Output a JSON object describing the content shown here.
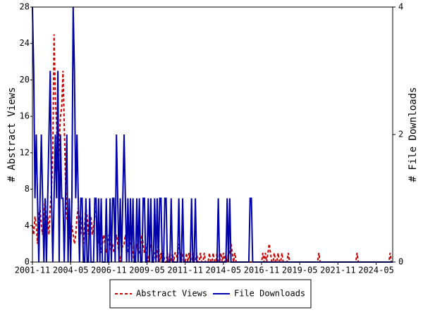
{
  "chart_data": {
    "type": "line",
    "x": [
      "2001-11",
      "2001-12",
      "2002-01",
      "2002-02",
      "2002-03",
      "2002-04",
      "2002-05",
      "2002-06",
      "2002-07",
      "2002-08",
      "2002-09",
      "2002-10",
      "2002-11",
      "2002-12",
      "2003-01",
      "2003-02",
      "2003-03",
      "2003-04",
      "2003-05",
      "2003-06",
      "2003-07",
      "2003-08",
      "2003-09",
      "2003-10",
      "2003-11",
      "2003-12",
      "2004-01",
      "2004-02",
      "2004-03",
      "2004-04",
      "2004-05",
      "2004-06",
      "2004-07",
      "2004-08",
      "2004-09",
      "2004-10",
      "2004-11",
      "2004-12",
      "2005-01",
      "2005-02",
      "2005-03",
      "2005-04",
      "2005-05",
      "2005-06",
      "2005-07",
      "2005-08",
      "2005-09",
      "2005-10",
      "2005-11",
      "2005-12",
      "2006-01",
      "2006-02",
      "2006-03",
      "2006-04",
      "2006-05",
      "2006-06",
      "2006-07",
      "2006-08",
      "2006-09",
      "2006-10",
      "2006-11",
      "2006-12",
      "2007-01",
      "2007-02",
      "2007-03",
      "2007-04",
      "2007-05",
      "2007-06",
      "2007-07",
      "2007-08",
      "2007-09",
      "2007-10",
      "2007-11",
      "2007-12",
      "2008-01",
      "2008-02",
      "2008-03",
      "2008-04",
      "2008-05",
      "2008-06",
      "2008-07",
      "2008-08",
      "2008-09",
      "2008-10",
      "2008-11",
      "2008-12",
      "2009-01",
      "2009-02",
      "2009-03",
      "2009-04",
      "2009-05",
      "2009-06",
      "2009-07",
      "2009-08",
      "2009-09",
      "2009-10",
      "2009-11",
      "2009-12",
      "2010-01",
      "2010-02",
      "2010-03",
      "2010-04",
      "2010-05",
      "2010-06",
      "2010-07",
      "2010-08",
      "2010-09",
      "2010-10",
      "2010-11",
      "2010-12",
      "2011-01",
      "2011-02",
      "2011-03",
      "2011-04",
      "2011-05",
      "2011-06",
      "2011-07",
      "2011-08",
      "2011-09",
      "2011-10",
      "2011-11",
      "2011-12",
      "2012-01",
      "2012-02",
      "2012-03",
      "2012-04",
      "2012-05",
      "2012-06",
      "2012-07",
      "2012-08",
      "2012-09",
      "2012-10",
      "2012-11",
      "2012-12",
      "2013-01",
      "2013-02",
      "2013-03",
      "2013-04",
      "2013-05",
      "2013-06",
      "2013-07",
      "2013-08",
      "2013-09",
      "2013-10",
      "2013-11",
      "2013-12",
      "2014-01",
      "2014-02",
      "2014-03",
      "2014-04",
      "2014-05",
      "2014-06",
      "2014-07",
      "2014-08",
      "2014-09",
      "2014-10",
      "2014-11",
      "2014-12",
      "2015-01",
      "2015-02",
      "2015-03",
      "2015-04",
      "2015-05",
      "2015-06",
      "2015-07",
      "2015-08",
      "2015-09",
      "2015-10",
      "2015-11",
      "2015-12",
      "2016-01",
      "2016-02",
      "2016-03",
      "2016-04",
      "2016-05",
      "2016-06",
      "2016-07",
      "2016-08",
      "2016-09",
      "2016-10",
      "2016-11",
      "2016-12",
      "2017-01",
      "2017-02",
      "2017-03",
      "2017-04",
      "2017-05",
      "2017-06",
      "2017-07",
      "2017-08",
      "2017-09",
      "2017-10",
      "2017-11",
      "2017-12",
      "2018-01",
      "2018-02",
      "2018-03",
      "2018-04",
      "2018-05",
      "2018-06",
      "2018-07",
      "2018-08",
      "2018-09",
      "2018-10",
      "2018-11",
      "2018-12",
      "2019-01",
      "2019-02",
      "2019-03",
      "2019-04",
      "2019-05",
      "2019-06",
      "2019-07",
      "2019-08",
      "2019-09",
      "2019-10",
      "2019-11",
      "2019-12",
      "2020-01",
      "2020-02",
      "2020-03",
      "2020-04",
      "2020-05",
      "2020-06",
      "2020-07",
      "2020-08",
      "2020-09",
      "2020-10",
      "2020-11",
      "2020-12",
      "2021-01",
      "2021-02",
      "2021-03",
      "2021-04",
      "2021-05",
      "2021-06",
      "2021-07",
      "2021-08",
      "2021-09",
      "2021-10",
      "2021-11",
      "2021-12",
      "2022-01",
      "2022-02",
      "2022-03",
      "2022-04",
      "2022-05",
      "2022-06",
      "2022-07",
      "2022-08",
      "2022-09",
      "2022-10",
      "2022-11",
      "2022-12",
      "2023-01",
      "2023-02",
      "2023-03",
      "2023-04",
      "2023-05",
      "2023-06",
      "2023-07",
      "2023-08",
      "2023-09",
      "2023-10",
      "2023-11",
      "2023-12",
      "2024-01",
      "2024-02",
      "2024-03",
      "2024-04",
      "2024-05",
      "2024-06",
      "2024-07",
      "2024-08",
      "2024-09",
      "2024-10",
      "2024-11",
      "2024-12",
      "2025-01",
      "2025-02",
      "2025-03",
      "2025-04",
      "2025-05",
      "2025-06"
    ],
    "xticks": [
      "2001-11",
      "2004-05",
      "2006-11",
      "2009-05",
      "2011-11",
      "2014-05",
      "2016-11",
      "2019-05",
      "2021-11",
      "2024-05"
    ],
    "ylabel": "# Abstract Views",
    "y2label": "# File Downloads",
    "ylim": [
      0,
      28
    ],
    "yticks": [
      0,
      4,
      8,
      12,
      16,
      20,
      24,
      28
    ],
    "y2lim": [
      0,
      4
    ],
    "y2ticks": [
      0,
      2,
      4
    ],
    "series": [
      {
        "name": "Abstract Views",
        "color": "#cc0000",
        "dash": true,
        "values": [
          4,
          3,
          5,
          4,
          2,
          5,
          6,
          4,
          3,
          5,
          7,
          4,
          5,
          3,
          6,
          8,
          12,
          25,
          18,
          15,
          10,
          13,
          16,
          17,
          21,
          15,
          9,
          5,
          4,
          3,
          2,
          4,
          3,
          2,
          3,
          5,
          6,
          4,
          3,
          5,
          2,
          4,
          6,
          5,
          3,
          4,
          5,
          3,
          4,
          5,
          6,
          3,
          2,
          3,
          1,
          2,
          3,
          2,
          1,
          2,
          3,
          2,
          1,
          2,
          1,
          2,
          3,
          2,
          1,
          0,
          1,
          2,
          2,
          3,
          2,
          1,
          3,
          2,
          2,
          1,
          0,
          1,
          2,
          1,
          1,
          2,
          3,
          2,
          1,
          2,
          1,
          0,
          1,
          2,
          1,
          1,
          1,
          0,
          1,
          2,
          0,
          1,
          0,
          1,
          0,
          0,
          1,
          0,
          1,
          0,
          1,
          0,
          1,
          1,
          0,
          2,
          1,
          0,
          1,
          0,
          0,
          1,
          0,
          1,
          0,
          0,
          1,
          0,
          0,
          1,
          0,
          0,
          1,
          0,
          0,
          1,
          0,
          0,
          0,
          1,
          0,
          0,
          1,
          0,
          0,
          1,
          0,
          0,
          1,
          0,
          1,
          0,
          1,
          0,
          1,
          1,
          2,
          1,
          0,
          1,
          0,
          0,
          0,
          0,
          0,
          0,
          0,
          0,
          0,
          0,
          0,
          0,
          0,
          0,
          0,
          0,
          0,
          0,
          0,
          0,
          0,
          1,
          0,
          1,
          0,
          1,
          2,
          1,
          0,
          0,
          1,
          0,
          0,
          1,
          0,
          0,
          1,
          0,
          0,
          0,
          0,
          1,
          0,
          0,
          0,
          0,
          0,
          0,
          0,
          0,
          0,
          0,
          0,
          0,
          0,
          0,
          0,
          0,
          0,
          0,
          0,
          0,
          0,
          0,
          0,
          1,
          0,
          0,
          0,
          0,
          0,
          0,
          0,
          0,
          0,
          0,
          0,
          0,
          0,
          0,
          0,
          0,
          0,
          0,
          0,
          0,
          0,
          0,
          0,
          0,
          0,
          0,
          0,
          0,
          0,
          1,
          0,
          0,
          0,
          0,
          0,
          0,
          0,
          0,
          0,
          0,
          0,
          0,
          0,
          0,
          0,
          0,
          0,
          0,
          0,
          0,
          0,
          0,
          0,
          0,
          0,
          1,
          0,
          0
        ]
      },
      {
        "name": "File Downloads",
        "color": "#0000aa",
        "axis": "y2",
        "values": [
          4,
          3,
          1,
          2,
          1,
          0,
          1,
          2,
          1,
          0,
          1,
          0,
          1,
          2,
          3,
          1,
          0,
          1,
          2,
          1,
          3,
          0,
          2,
          1,
          1,
          0,
          1,
          2,
          0,
          1,
          0,
          1,
          4,
          3,
          1,
          2,
          1,
          0,
          1,
          1,
          0,
          0,
          1,
          0,
          0,
          1,
          0,
          0,
          0,
          1,
          1,
          0,
          1,
          0,
          1,
          0,
          0,
          0,
          1,
          0,
          0,
          1,
          0,
          1,
          1,
          0,
          2,
          1,
          0,
          1,
          0,
          1,
          2,
          1,
          0,
          1,
          0,
          1,
          0,
          1,
          0,
          0,
          1,
          0,
          1,
          0,
          0,
          1,
          1,
          0,
          0,
          1,
          0,
          1,
          0,
          0,
          1,
          0,
          1,
          0,
          1,
          1,
          0,
          0,
          1,
          1,
          0,
          0,
          0,
          1,
          0,
          0,
          0,
          0,
          0,
          1,
          0,
          0,
          1,
          0,
          0,
          0,
          0,
          0,
          0,
          1,
          0,
          0,
          1,
          0,
          0,
          0,
          0,
          0,
          0,
          0,
          0,
          0,
          0,
          0,
          0,
          0,
          0,
          0,
          0,
          0,
          1,
          0,
          0,
          0,
          0,
          0,
          0,
          1,
          0,
          1,
          0,
          0,
          0,
          0,
          0,
          0,
          0,
          0,
          0,
          0,
          0,
          0,
          0,
          0,
          0,
          1,
          1,
          0,
          0,
          0,
          0,
          0,
          0,
          0,
          0,
          0,
          0,
          0,
          0,
          0,
          0,
          0,
          0,
          0,
          0,
          0,
          0,
          0,
          0,
          0,
          0,
          0,
          0,
          0,
          0,
          0,
          0,
          0,
          0,
          0,
          0,
          0,
          0,
          0,
          0,
          0,
          0,
          0,
          0,
          0,
          0,
          0,
          0,
          0,
          0,
          0,
          0,
          0,
          0,
          0,
          0,
          0,
          0,
          0,
          0,
          0,
          0,
          0,
          0,
          0,
          0,
          0,
          0,
          0,
          0,
          0,
          0,
          0,
          0,
          0,
          0,
          0,
          0,
          0,
          0,
          0,
          0,
          0,
          0,
          0,
          0,
          0,
          0,
          0,
          0,
          0,
          0,
          0,
          0,
          0,
          0,
          0,
          0,
          0,
          0,
          0,
          0,
          0,
          0,
          0,
          0,
          0,
          0,
          0,
          0,
          0,
          0,
          0
        ]
      }
    ]
  }
}
